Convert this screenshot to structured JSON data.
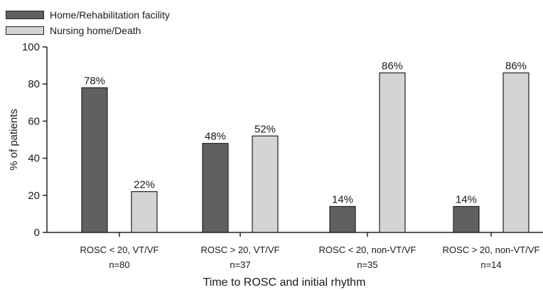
{
  "chart_data": {
    "type": "bar",
    "title": "",
    "xlabel": "Time to ROSC and initial rhythm",
    "ylabel": "% of patients",
    "ylim": [
      0,
      100
    ],
    "yticks": [
      "0",
      "20",
      "40",
      "60",
      "80",
      "100"
    ],
    "categories": [
      {
        "label": "ROSC < 20, VT/VF",
        "n": "n=80"
      },
      {
        "label": "ROSC > 20, VT/VF",
        "n": "n=37"
      },
      {
        "label": "ROSC < 20, non-VT/VF",
        "n": "n=35"
      },
      {
        "label": "ROSC > 20, non-VT/VF",
        "n": "n=14"
      }
    ],
    "series": [
      {
        "name": "Home/Rehabilitation facility",
        "color": "#606060",
        "values": [
          78,
          48,
          14,
          14
        ],
        "labels": [
          "78%",
          "48%",
          "14%",
          "14%"
        ]
      },
      {
        "name": "Nursing home/Death",
        "color": "#d4d4d4",
        "values": [
          22,
          52,
          86,
          86
        ],
        "labels": [
          "22%",
          "52%",
          "86%",
          "86%"
        ]
      }
    ],
    "grid": false,
    "legend": "top-left"
  }
}
